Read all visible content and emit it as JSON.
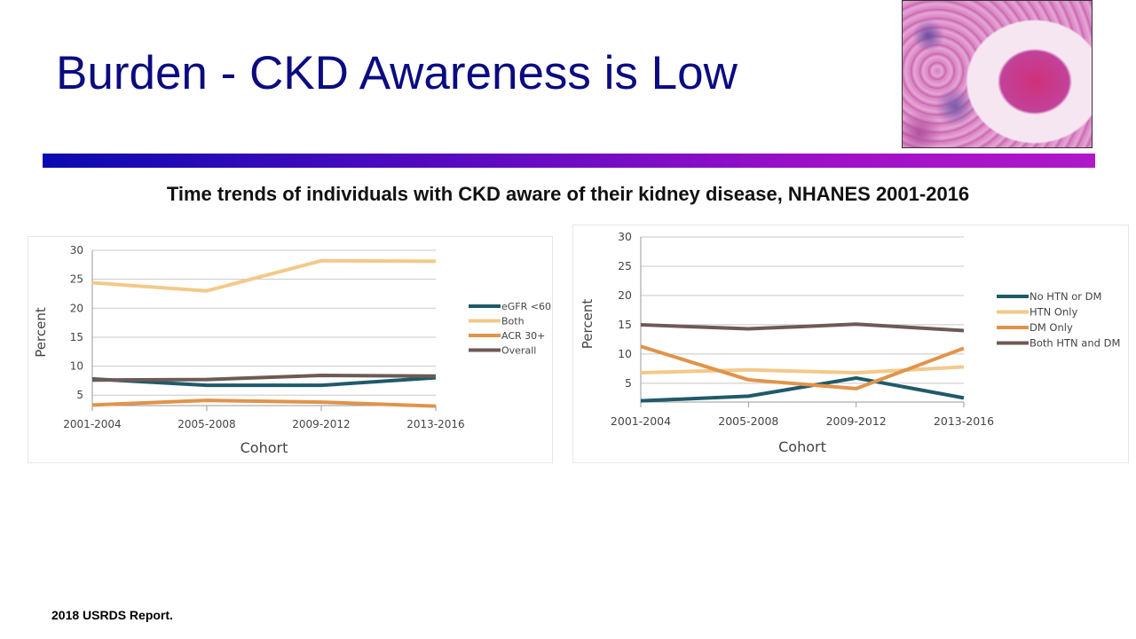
{
  "slide": {
    "title": "Burden - CKD Awareness is Low",
    "subtitle": "Time trends of individuals with CKD aware of their kidney disease, NHANES 2001-2016",
    "footnote": "2018 USRDS Report.",
    "title_color": "#0b0b80"
  },
  "chart_data": [
    {
      "type": "line",
      "xlabel": "Cohort",
      "ylabel": "Percent",
      "categories": [
        "2001-2004",
        "2005-2008",
        "2009-2012",
        "2013-2016"
      ],
      "yticks": [
        5,
        10,
        15,
        20,
        25,
        30
      ],
      "ylim": [
        3.2,
        30
      ],
      "grid": true,
      "legend": "right",
      "series": [
        {
          "name": "eGFR <60",
          "color": "#1f5a6b",
          "values": [
            7.8,
            6.7,
            6.7,
            8.0
          ]
        },
        {
          "name": "Both",
          "color": "#f3c98a",
          "values": [
            24.4,
            23.0,
            28.2,
            28.1
          ]
        },
        {
          "name": "ACR 30+",
          "color": "#e0944a",
          "values": [
            3.3,
            4.1,
            3.8,
            3.1
          ]
        },
        {
          "name": "Overall",
          "color": "#6e5a55",
          "values": [
            7.6,
            7.7,
            8.4,
            8.3
          ]
        }
      ]
    },
    {
      "type": "line",
      "xlabel": "Cohort",
      "ylabel": "Percent",
      "categories": [
        "2001-2004",
        "2005-2008",
        "2009-2012",
        "2013-2016"
      ],
      "yticks": [
        5,
        10,
        15,
        20,
        25,
        30
      ],
      "ylim": [
        1.8,
        30
      ],
      "grid": true,
      "legend": "right",
      "series": [
        {
          "name": "No HTN or DM",
          "color": "#1f5a6b",
          "values": [
            2.0,
            2.8,
            5.9,
            2.5
          ]
        },
        {
          "name": "HTN Only",
          "color": "#f3c98a",
          "values": [
            6.8,
            7.3,
            6.8,
            7.8
          ]
        },
        {
          "name": "DM Only",
          "color": "#e0944a",
          "values": [
            11.3,
            5.6,
            4.1,
            11.0
          ]
        },
        {
          "name": "Both HTN and DM",
          "color": "#6e5a55",
          "values": [
            15.0,
            14.3,
            15.1,
            14.0
          ]
        }
      ]
    }
  ]
}
